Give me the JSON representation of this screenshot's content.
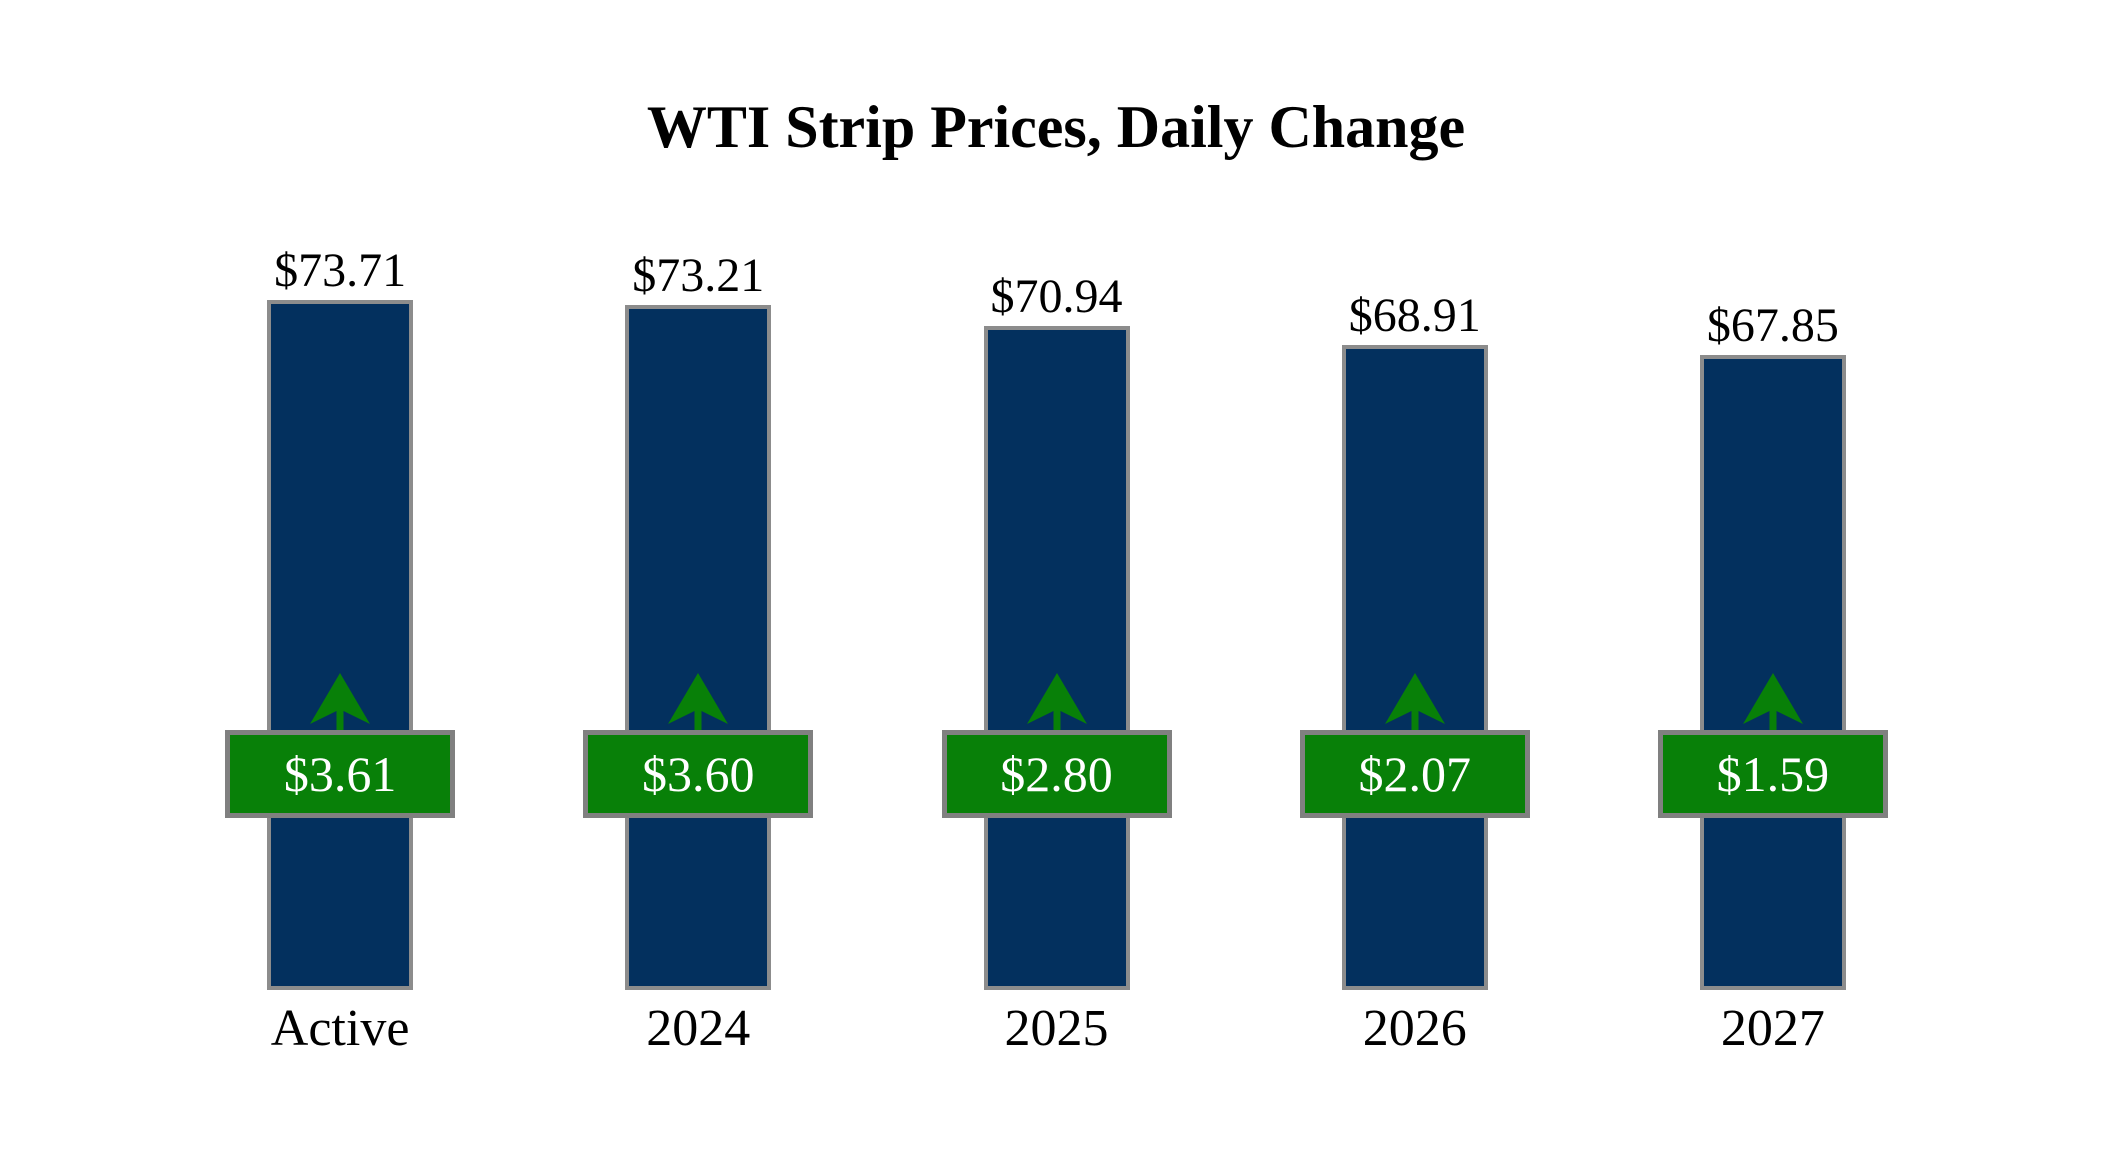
{
  "chart_data": {
    "type": "bar",
    "title": "WTI Strip Prices, Daily Change",
    "categories": [
      "Active",
      "2024",
      "2025",
      "2026",
      "2027"
    ],
    "series": [
      {
        "name": "WTI Strip Price",
        "role": "bar",
        "values": [
          73.71,
          73.21,
          70.94,
          68.91,
          67.85
        ],
        "labels": [
          "$73.71",
          "$73.21",
          "$70.94",
          "$68.91",
          "$67.85"
        ],
        "label_position": "above-bar"
      },
      {
        "name": "Daily Change",
        "role": "change-badge",
        "values": [
          3.61,
          3.6,
          2.8,
          2.07,
          1.59
        ],
        "labels": [
          "$3.61",
          "$3.60",
          "$2.80",
          "$2.07",
          "$1.59"
        ],
        "direction": [
          "up",
          "up",
          "up",
          "up",
          "up"
        ]
      }
    ],
    "ylim": [
      0,
      73.71
    ],
    "axes_visible": false,
    "gridlines": false,
    "legend": "none",
    "colors": {
      "background": "#FFFFFF",
      "bar_fill": "#03305E",
      "bar_border": "#8C8C8C",
      "badge_fill": "#088008",
      "badge_border": "#808080",
      "arrow": "#088008",
      "title_text": "#000000",
      "price_text": "#000000",
      "badge_text": "#FFFFFF",
      "category_text": "#000000"
    }
  }
}
